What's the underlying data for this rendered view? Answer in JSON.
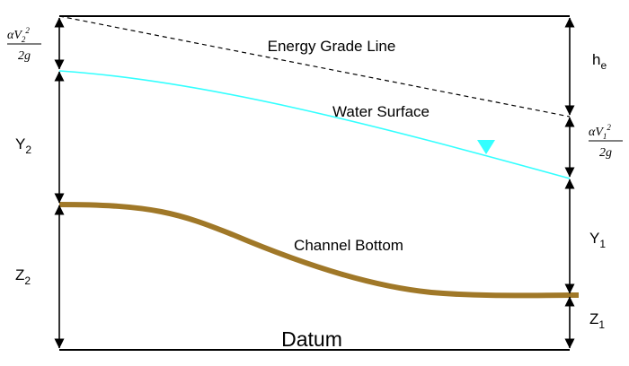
{
  "diagram": {
    "labels": {
      "energy_grade_line": "Energy Grade Line",
      "water_surface": "Water Surface",
      "channel_bottom": "Channel Bottom",
      "datum": "Datum"
    },
    "left_dims": {
      "velocity_head": {
        "coef": "αV",
        "sub": "2",
        "sup": "2",
        "den": "2g"
      },
      "depth": {
        "base": "Y",
        "sub": "2"
      },
      "elevation": {
        "base": "Z",
        "sub": "2"
      }
    },
    "right_dims": {
      "head_loss": {
        "base": "h",
        "sub": "e"
      },
      "velocity_head": {
        "coef": "αV",
        "sub": "1",
        "sup": "2",
        "den": "2g"
      },
      "depth": {
        "base": "Y",
        "sub": "1"
      },
      "elevation": {
        "base": "Z",
        "sub": "1"
      }
    },
    "colors": {
      "energy_grade_line": "#000000",
      "water_surface": "#33FFFF",
      "channel_bottom": "#A07828",
      "water_marker": "#33FFFF",
      "frame": "#000000"
    }
  }
}
